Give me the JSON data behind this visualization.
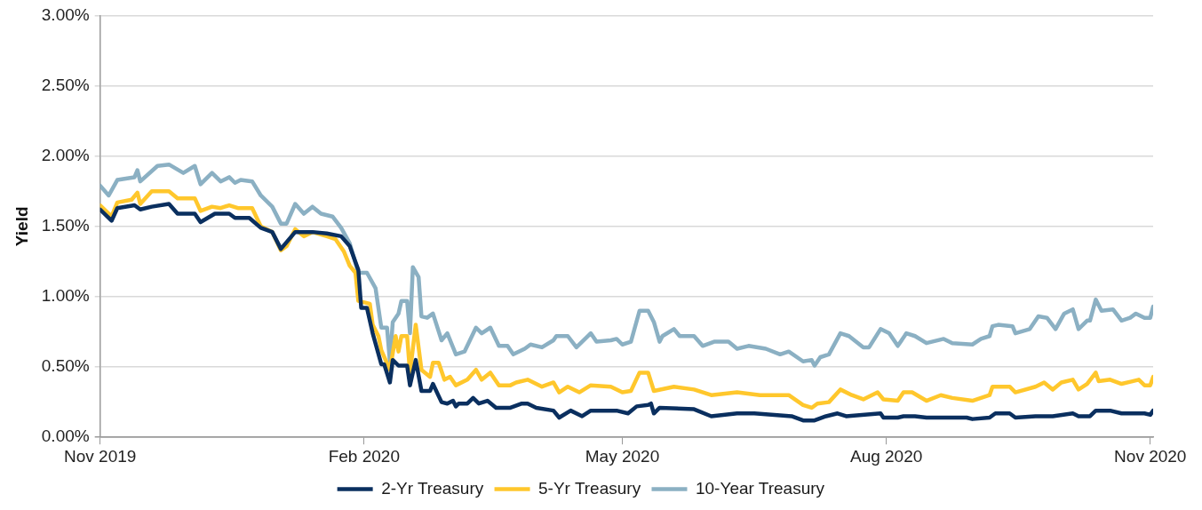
{
  "chart_data": {
    "type": "line",
    "ylabel": "Yield",
    "xlim": [
      "2019-11-01",
      "2020-11-02"
    ],
    "xticks": [
      {
        "value": "2019-11-01",
        "label": "Nov 2019"
      },
      {
        "value": "2020-02-01",
        "label": "Feb 2020"
      },
      {
        "value": "2020-05-01",
        "label": "May 2020"
      },
      {
        "value": "2020-08-01",
        "label": "Aug 2020"
      },
      {
        "value": "2020-11-01",
        "label": "Nov 2020"
      }
    ],
    "ylim": [
      0,
      3
    ],
    "yticks": [
      {
        "value": 0,
        "label": "0.00%"
      },
      {
        "value": 0.5,
        "label": "0.50%"
      },
      {
        "value": 1,
        "label": "1.00%"
      },
      {
        "value": 1.5,
        "label": "1.50%"
      },
      {
        "value": 2,
        "label": "2.00%"
      },
      {
        "value": 2.5,
        "label": "2.50%"
      },
      {
        "value": 3,
        "label": "3.00%"
      }
    ],
    "grid": "y",
    "legend": "bottom",
    "series": [
      {
        "name": "2-Yr Treasury",
        "color": "#0a2f5f",
        "x": [
          "2019-11-01",
          "2019-11-05",
          "2019-11-07",
          "2019-11-13",
          "2019-11-15",
          "2019-11-19",
          "2019-11-25",
          "2019-11-28",
          "2019-12-04",
          "2019-12-06",
          "2019-12-11",
          "2019-12-16",
          "2019-12-18",
          "2019-12-23",
          "2019-12-27",
          "2019-12-31",
          "2020-01-03",
          "2020-01-08",
          "2020-01-14",
          "2020-01-19",
          "2020-01-24",
          "2020-01-27",
          "2020-01-30",
          "2020-01-31",
          "2020-02-02",
          "2020-02-04",
          "2020-02-07",
          "2020-02-08",
          "2020-02-10",
          "2020-02-11",
          "2020-02-13",
          "2020-02-16",
          "2020-02-17",
          "2020-02-19",
          "2020-02-21",
          "2020-02-24",
          "2020-02-25",
          "2020-02-28",
          "2020-03-01",
          "2020-03-03",
          "2020-03-04",
          "2020-03-05",
          "2020-03-08",
          "2020-03-10",
          "2020-03-12",
          "2020-03-15",
          "2020-03-18",
          "2020-03-23",
          "2020-03-27",
          "2020-03-29",
          "2020-04-01",
          "2020-04-07",
          "2020-04-09",
          "2020-04-13",
          "2020-04-17",
          "2020-04-20",
          "2020-04-29",
          "2020-05-03",
          "2020-05-06",
          "2020-05-10",
          "2020-05-11",
          "2020-05-12",
          "2020-05-14",
          "2020-05-26",
          "2020-06-01",
          "2020-06-10",
          "2020-06-16",
          "2020-06-29",
          "2020-07-03",
          "2020-07-07",
          "2020-07-11",
          "2020-07-15",
          "2020-07-18",
          "2020-07-30",
          "2020-07-31",
          "2020-08-05",
          "2020-08-07",
          "2020-08-11",
          "2020-08-15",
          "2020-08-29",
          "2020-08-31",
          "2020-09-06",
          "2020-09-08",
          "2020-09-13",
          "2020-09-15",
          "2020-09-22",
          "2020-09-28",
          "2020-10-05",
          "2020-10-07",
          "2020-10-11",
          "2020-10-13",
          "2020-10-18",
          "2020-10-22",
          "2020-10-30",
          "2020-11-01",
          "2020-11-02"
        ],
        "values": [
          1.62,
          1.54,
          1.63,
          1.65,
          1.62,
          1.64,
          1.66,
          1.59,
          1.59,
          1.53,
          1.59,
          1.59,
          1.56,
          1.56,
          1.49,
          1.46,
          1.34,
          1.46,
          1.46,
          1.45,
          1.43,
          1.36,
          1.19,
          0.92,
          0.92,
          0.74,
          0.52,
          0.52,
          0.39,
          0.55,
          0.51,
          0.51,
          0.37,
          0.55,
          0.33,
          0.33,
          0.38,
          0.25,
          0.24,
          0.26,
          0.22,
          0.24,
          0.24,
          0.28,
          0.24,
          0.26,
          0.21,
          0.21,
          0.24,
          0.24,
          0.21,
          0.19,
          0.14,
          0.19,
          0.15,
          0.19,
          0.19,
          0.17,
          0.22,
          0.23,
          0.24,
          0.17,
          0.21,
          0.2,
          0.15,
          0.17,
          0.17,
          0.15,
          0.12,
          0.12,
          0.15,
          0.17,
          0.15,
          0.17,
          0.14,
          0.14,
          0.15,
          0.15,
          0.14,
          0.14,
          0.13,
          0.14,
          0.17,
          0.17,
          0.14,
          0.15,
          0.15,
          0.17,
          0.15,
          0.15,
          0.19,
          0.19,
          0.17,
          0.17,
          0.16,
          0.19
        ]
      },
      {
        "name": "5-Yr Treasury",
        "color": "#ffc72c",
        "x": [
          "2019-11-01",
          "2019-11-05",
          "2019-11-07",
          "2019-11-12",
          "2019-11-14",
          "2019-11-15",
          "2019-11-19",
          "2019-11-25",
          "2019-11-28",
          "2019-12-04",
          "2019-12-06",
          "2019-12-10",
          "2019-12-13",
          "2019-12-16",
          "2019-12-19",
          "2019-12-24",
          "2019-12-27",
          "2019-12-31",
          "2020-01-03",
          "2020-01-05",
          "2020-01-08",
          "2020-01-11",
          "2020-01-14",
          "2020-01-19",
          "2020-01-22",
          "2020-01-25",
          "2020-01-27",
          "2020-01-29",
          "2020-01-30",
          "2020-02-03",
          "2020-02-04",
          "2020-02-06",
          "2020-02-07",
          "2020-02-10",
          "2020-02-12",
          "2020-02-13",
          "2020-02-14",
          "2020-02-16",
          "2020-02-17",
          "2020-02-19",
          "2020-02-21",
          "2020-02-24",
          "2020-02-25",
          "2020-02-27",
          "2020-02-29",
          "2020-03-02",
          "2020-03-04",
          "2020-03-08",
          "2020-03-11",
          "2020-03-13",
          "2020-03-16",
          "2020-03-19",
          "2020-03-23",
          "2020-03-25",
          "2020-03-29",
          "2020-04-03",
          "2020-04-07",
          "2020-04-09",
          "2020-04-12",
          "2020-04-16",
          "2020-04-20",
          "2020-04-27",
          "2020-05-01",
          "2020-05-04",
          "2020-05-07",
          "2020-05-10",
          "2020-05-12",
          "2020-05-19",
          "2020-05-26",
          "2020-06-01",
          "2020-06-10",
          "2020-06-18",
          "2020-06-28",
          "2020-07-03",
          "2020-07-06",
          "2020-07-08",
          "2020-07-12",
          "2020-07-16",
          "2020-07-20",
          "2020-07-24",
          "2020-07-29",
          "2020-07-31",
          "2020-08-05",
          "2020-08-07",
          "2020-08-10",
          "2020-08-15",
          "2020-08-20",
          "2020-08-24",
          "2020-08-31",
          "2020-09-06",
          "2020-09-07",
          "2020-09-13",
          "2020-09-15",
          "2020-09-22",
          "2020-09-25",
          "2020-09-28",
          "2020-10-01",
          "2020-10-05",
          "2020-10-07",
          "2020-10-10",
          "2020-10-13",
          "2020-10-14",
          "2020-10-18",
          "2020-10-22",
          "2020-10-28",
          "2020-10-30",
          "2020-11-01",
          "2020-11-02"
        ],
        "values": [
          1.65,
          1.57,
          1.67,
          1.69,
          1.74,
          1.66,
          1.75,
          1.75,
          1.7,
          1.7,
          1.61,
          1.64,
          1.63,
          1.65,
          1.63,
          1.63,
          1.5,
          1.46,
          1.33,
          1.36,
          1.48,
          1.43,
          1.46,
          1.43,
          1.41,
          1.32,
          1.22,
          1.17,
          0.97,
          0.95,
          0.8,
          0.72,
          0.62,
          0.48,
          0.72,
          0.61,
          0.72,
          0.72,
          0.46,
          0.8,
          0.48,
          0.43,
          0.53,
          0.53,
          0.41,
          0.43,
          0.37,
          0.41,
          0.48,
          0.41,
          0.46,
          0.37,
          0.37,
          0.39,
          0.41,
          0.36,
          0.39,
          0.32,
          0.36,
          0.32,
          0.37,
          0.36,
          0.32,
          0.33,
          0.46,
          0.46,
          0.33,
          0.36,
          0.34,
          0.3,
          0.32,
          0.3,
          0.3,
          0.23,
          0.21,
          0.24,
          0.25,
          0.34,
          0.3,
          0.27,
          0.32,
          0.27,
          0.26,
          0.32,
          0.32,
          0.26,
          0.3,
          0.28,
          0.26,
          0.3,
          0.36,
          0.36,
          0.32,
          0.36,
          0.39,
          0.34,
          0.39,
          0.41,
          0.34,
          0.38,
          0.46,
          0.4,
          0.41,
          0.38,
          0.41,
          0.37,
          0.37,
          0.43
        ]
      },
      {
        "name": "10-Year Treasury",
        "color": "#8bb0c3",
        "x": [
          "2019-11-01",
          "2019-11-04",
          "2019-11-07",
          "2019-11-13",
          "2019-11-14",
          "2019-11-15",
          "2019-11-21",
          "2019-11-25",
          "2019-11-30",
          "2019-12-04",
          "2019-12-06",
          "2019-12-10",
          "2019-12-13",
          "2019-12-16",
          "2019-12-18",
          "2019-12-20",
          "2019-12-24",
          "2019-12-27",
          "2019-12-31",
          "2020-01-03",
          "2020-01-05",
          "2020-01-08",
          "2020-01-11",
          "2020-01-14",
          "2020-01-17",
          "2020-01-21",
          "2020-01-24",
          "2020-01-27",
          "2020-01-30",
          "2020-02-02",
          "2020-02-05",
          "2020-02-07",
          "2020-02-09",
          "2020-02-10",
          "2020-02-11",
          "2020-02-13",
          "2020-02-14",
          "2020-02-16",
          "2020-02-17",
          "2020-02-18",
          "2020-02-20",
          "2020-02-21",
          "2020-02-23",
          "2020-02-25",
          "2020-02-28",
          "2020-03-01",
          "2020-03-04",
          "2020-03-07",
          "2020-03-11",
          "2020-03-13",
          "2020-03-16",
          "2020-03-19",
          "2020-03-22",
          "2020-03-24",
          "2020-03-28",
          "2020-03-30",
          "2020-04-03",
          "2020-04-07",
          "2020-04-08",
          "2020-04-12",
          "2020-04-15",
          "2020-04-20",
          "2020-04-22",
          "2020-04-27",
          "2020-04-29",
          "2020-05-01",
          "2020-05-04",
          "2020-05-07",
          "2020-05-10",
          "2020-05-12",
          "2020-05-14",
          "2020-05-15",
          "2020-05-19",
          "2020-05-21",
          "2020-05-26",
          "2020-05-29",
          "2020-06-02",
          "2020-06-07",
          "2020-06-10",
          "2020-06-14",
          "2020-06-20",
          "2020-06-25",
          "2020-06-28",
          "2020-07-03",
          "2020-07-06",
          "2020-07-07",
          "2020-07-09",
          "2020-07-12",
          "2020-07-16",
          "2020-07-19",
          "2020-07-24",
          "2020-07-26",
          "2020-07-30",
          "2020-08-02",
          "2020-08-05",
          "2020-08-08",
          "2020-08-11",
          "2020-08-15",
          "2020-08-21",
          "2020-08-24",
          "2020-08-31",
          "2020-09-03",
          "2020-09-06",
          "2020-09-07",
          "2020-09-09",
          "2020-09-14",
          "2020-09-15",
          "2020-09-20",
          "2020-09-23",
          "2020-09-26",
          "2020-09-29",
          "2020-10-02",
          "2020-10-05",
          "2020-10-07",
          "2020-10-10",
          "2020-10-11",
          "2020-10-13",
          "2020-10-15",
          "2020-10-19",
          "2020-10-22",
          "2020-10-25",
          "2020-10-27",
          "2020-10-30",
          "2020-11-01",
          "2020-11-02"
        ],
        "values": [
          1.79,
          1.72,
          1.83,
          1.85,
          1.9,
          1.82,
          1.93,
          1.94,
          1.88,
          1.93,
          1.8,
          1.88,
          1.82,
          1.85,
          1.81,
          1.83,
          1.82,
          1.72,
          1.64,
          1.52,
          1.52,
          1.66,
          1.59,
          1.64,
          1.59,
          1.57,
          1.49,
          1.38,
          1.17,
          1.17,
          1.06,
          0.78,
          0.78,
          0.54,
          0.82,
          0.88,
          0.97,
          0.97,
          0.74,
          1.21,
          1.14,
          0.86,
          0.85,
          0.88,
          0.69,
          0.74,
          0.59,
          0.61,
          0.78,
          0.74,
          0.78,
          0.65,
          0.65,
          0.59,
          0.63,
          0.66,
          0.64,
          0.69,
          0.72,
          0.72,
          0.64,
          0.74,
          0.68,
          0.69,
          0.7,
          0.66,
          0.68,
          0.9,
          0.9,
          0.82,
          0.68,
          0.72,
          0.77,
          0.72,
          0.72,
          0.65,
          0.68,
          0.68,
          0.63,
          0.65,
          0.63,
          0.59,
          0.61,
          0.54,
          0.55,
          0.51,
          0.57,
          0.59,
          0.74,
          0.72,
          0.64,
          0.64,
          0.77,
          0.74,
          0.65,
          0.74,
          0.72,
          0.67,
          0.7,
          0.67,
          0.66,
          0.7,
          0.72,
          0.79,
          0.8,
          0.79,
          0.74,
          0.77,
          0.86,
          0.85,
          0.77,
          0.88,
          0.91,
          0.77,
          0.83,
          0.83,
          0.98,
          0.9,
          0.91,
          0.83,
          0.85,
          0.88,
          0.85,
          0.85,
          0.93
        ]
      }
    ]
  }
}
